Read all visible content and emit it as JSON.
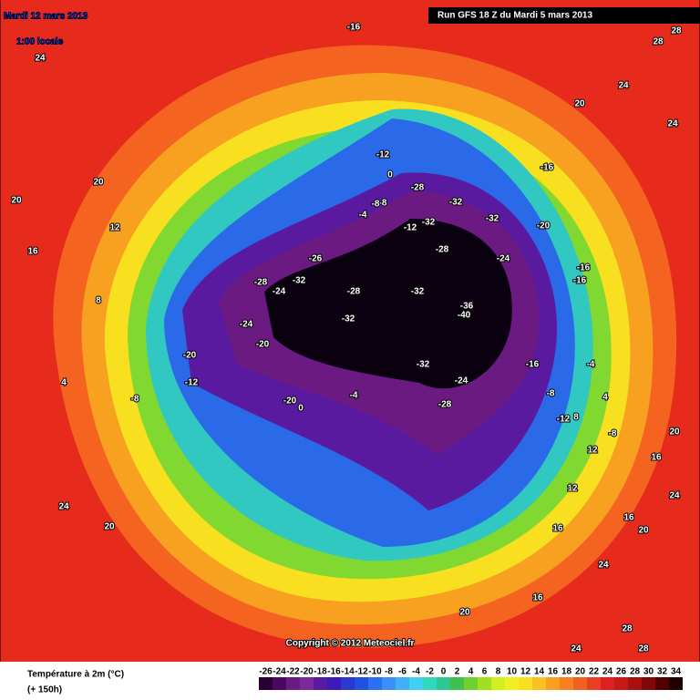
{
  "header": {
    "date": "Mardi 12 mars 2013",
    "time": "1:00 locale",
    "run": "Run GFS 18 Z du Mardi 5 mars 2013"
  },
  "map": {
    "copyright": "Copyright © 2012 Meteociel.fr",
    "labels": [
      "24",
      "-16",
      "28",
      "28",
      "24",
      "20",
      "24",
      "20",
      "-12",
      "-12",
      "-16",
      "-28",
      "-32",
      "-32",
      "-28",
      "-32",
      "-24",
      "-20",
      "-16",
      "-8",
      "-4",
      "0",
      "-8",
      "-26",
      "-28",
      "-24",
      "-32",
      "-28",
      "-32",
      "-40",
      "-36",
      "-32",
      "-20",
      "-24",
      "-20",
      "-16",
      "-8",
      "-12",
      "-16",
      "20",
      "16",
      "12",
      "8",
      "4",
      "0",
      "-4",
      "-8",
      "-12",
      "-20",
      "-28",
      "-32",
      "-24",
      "20",
      "24",
      "16",
      "12",
      "8",
      "4",
      "-4",
      "-8",
      "12",
      "16",
      "20",
      "24",
      "20",
      "16",
      "24",
      "28",
      "24",
      "28",
      "20",
      "16"
    ]
  },
  "legend": {
    "title": "Température à 2m (°C)",
    "subtitle": "(+ 150h)",
    "ticks": [
      -26,
      -24,
      -22,
      -20,
      -18,
      -16,
      -14,
      -12,
      -10,
      -8,
      -6,
      -4,
      -2,
      0,
      2,
      4,
      6,
      8,
      10,
      12,
      14,
      16,
      18,
      20,
      22,
      24,
      26,
      28,
      30,
      32,
      34
    ],
    "colors": [
      "#2a0030",
      "#4a0860",
      "#6a1a80",
      "#7a2a9a",
      "#5a1aa0",
      "#3a1ab8",
      "#2a3ad0",
      "#2050e0",
      "#2a70f0",
      "#3a90f8",
      "#40b0f8",
      "#40d0f0",
      "#30d8c0",
      "#30c890",
      "#40c050",
      "#70d030",
      "#a0e020",
      "#d0f020",
      "#f0f020",
      "#f8e020",
      "#f8c020",
      "#f8a020",
      "#f88020",
      "#f06020",
      "#e84020",
      "#e02020",
      "#c81818",
      "#a81010",
      "#800808",
      "#500000",
      "#200000"
    ]
  }
}
